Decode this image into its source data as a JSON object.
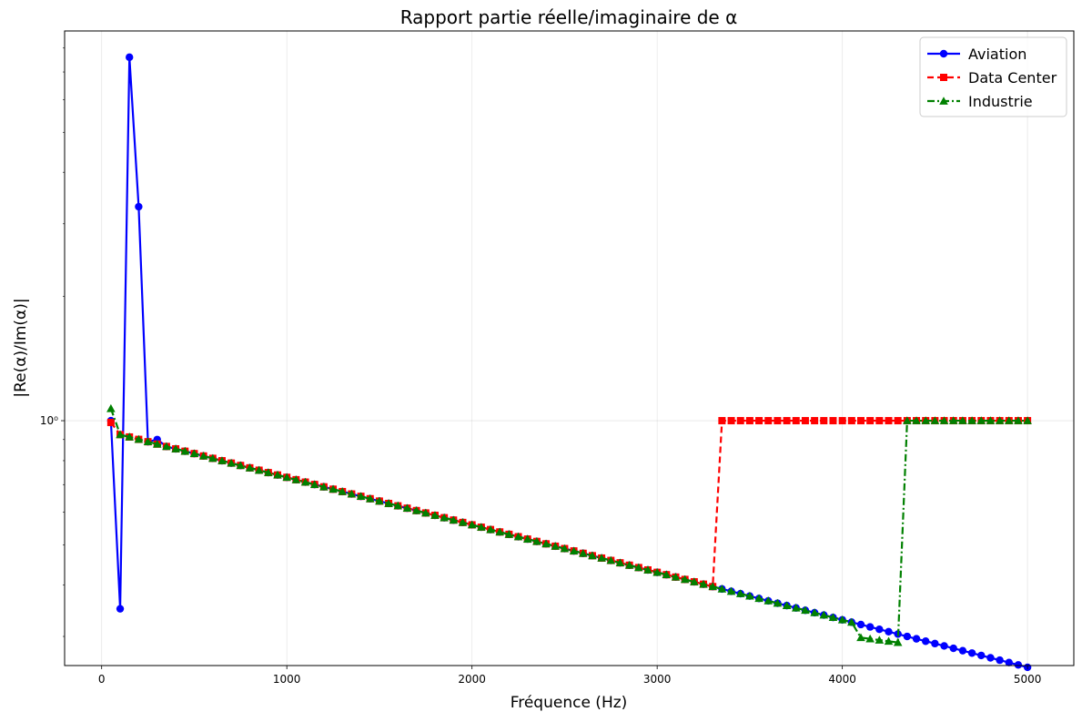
{
  "chart_data": {
    "type": "line",
    "title": "Rapport partie réelle/imaginaire de α",
    "xlabel": "Fréquence (Hz)",
    "ylabel": "|Re(α)/Im(α)|",
    "xlim": [
      -200,
      5250
    ],
    "ylim_log": [
      0.255,
      8.8
    ],
    "yscale": "log",
    "grid": true,
    "legend_position": "top-right",
    "x_ticks": [
      0,
      1000,
      2000,
      3000,
      4000,
      5000
    ],
    "x_tick_labels": [
      "0",
      "1000",
      "2000",
      "3000",
      "4000",
      "5000"
    ],
    "y_ticks": [
      1
    ],
    "y_tick_labels": [
      "10⁰"
    ],
    "y_minor_ticks": [
      0.3,
      0.4,
      0.5,
      0.6,
      0.7,
      0.8,
      0.9,
      2,
      3,
      4,
      5,
      6,
      7,
      8
    ],
    "x": {
      "start": 50,
      "step": 50,
      "end": 5000
    },
    "series": [
      {
        "name": "Aviation",
        "color": "#0000ff",
        "marker": "circle",
        "linestyle": "solid",
        "overrides": [
          [
            50,
            1.0
          ],
          [
            100,
            0.35
          ],
          [
            150,
            7.6
          ],
          [
            200,
            3.3
          ],
          [
            300,
            0.9
          ]
        ],
        "trend": {
          "a": 0.95,
          "b": 0.000265
        }
      },
      {
        "name": "Data Center",
        "color": "#ff0000",
        "marker": "square",
        "linestyle": "dashed",
        "overrides": [
          [
            50,
            0.99
          ]
        ],
        "trend": {
          "a": 0.95,
          "b": 0.000265
        },
        "jump_at": 3350,
        "jump_value": 1.0
      },
      {
        "name": "Industrie",
        "color": "#008000",
        "marker": "triangle",
        "linestyle": "dashdot",
        "overrides": [
          [
            50,
            1.07
          ],
          [
            4100,
            0.298
          ],
          [
            4150,
            0.296
          ],
          [
            4200,
            0.294
          ],
          [
            4250,
            0.292
          ],
          [
            4300,
            0.29
          ]
        ],
        "trend": {
          "a": 0.95,
          "b": 0.000265
        },
        "jump_at": 4350,
        "jump_value": 1.0
      }
    ]
  }
}
